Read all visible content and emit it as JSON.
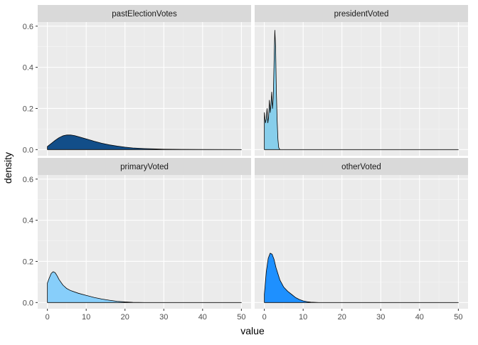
{
  "chart_data": {
    "type": "area",
    "chart_kind": "faceted density plot",
    "xlabel": "value",
    "ylabel": "density",
    "xlim": [
      -2.5,
      52.5
    ],
    "ylim": [
      -0.03,
      0.62
    ],
    "x_ticks": [
      0,
      10,
      20,
      30,
      40,
      50
    ],
    "x_tick_labels": [
      "0",
      "10",
      "20",
      "30",
      "40",
      "50"
    ],
    "y_ticks": [
      0.0,
      0.2,
      0.4,
      0.6
    ],
    "y_tick_labels": [
      "0.0",
      "0.2",
      "0.4",
      "0.6"
    ],
    "grid": true,
    "legend": "none",
    "facets": [
      {
        "label": "pastElectionVotes",
        "fill": "#124E89",
        "points": [
          [
            0,
            0.015
          ],
          [
            1,
            0.03
          ],
          [
            2,
            0.045
          ],
          [
            3,
            0.058
          ],
          [
            4,
            0.067
          ],
          [
            5,
            0.071
          ],
          [
            6,
            0.071
          ],
          [
            7,
            0.068
          ],
          [
            8,
            0.063
          ],
          [
            10,
            0.052
          ],
          [
            12,
            0.041
          ],
          [
            14,
            0.031
          ],
          [
            16,
            0.023
          ],
          [
            18,
            0.017
          ],
          [
            20,
            0.012
          ],
          [
            22,
            0.008
          ],
          [
            25,
            0.005
          ],
          [
            28,
            0.003
          ],
          [
            30,
            0.002
          ],
          [
            35,
            0.001
          ],
          [
            40,
            0.0005
          ],
          [
            50,
            0
          ]
        ]
      },
      {
        "label": "presidentVoted",
        "fill": "#87CEEB",
        "points": [
          [
            0,
            0.18
          ],
          [
            0.3,
            0.13
          ],
          [
            0.5,
            0.15
          ],
          [
            0.7,
            0.2
          ],
          [
            0.9,
            0.13
          ],
          [
            1.1,
            0.16
          ],
          [
            1.3,
            0.24
          ],
          [
            1.5,
            0.18
          ],
          [
            1.7,
            0.22
          ],
          [
            1.9,
            0.28
          ],
          [
            2.1,
            0.2
          ],
          [
            2.3,
            0.25
          ],
          [
            2.5,
            0.42
          ],
          [
            2.7,
            0.58
          ],
          [
            2.9,
            0.5
          ],
          [
            3.1,
            0.28
          ],
          [
            3.3,
            0.14
          ],
          [
            3.5,
            0.05
          ],
          [
            3.7,
            0.01
          ],
          [
            4,
            0
          ],
          [
            50,
            0
          ]
        ]
      },
      {
        "label": "primaryVoted",
        "fill": "#87CEFA",
        "points": [
          [
            0,
            0.095
          ],
          [
            0.5,
            0.12
          ],
          [
            1,
            0.142
          ],
          [
            1.5,
            0.15
          ],
          [
            2,
            0.145
          ],
          [
            2.5,
            0.13
          ],
          [
            3,
            0.112
          ],
          [
            4,
            0.085
          ],
          [
            5,
            0.068
          ],
          [
            6,
            0.058
          ],
          [
            8,
            0.045
          ],
          [
            10,
            0.035
          ],
          [
            12,
            0.025
          ],
          [
            14,
            0.017
          ],
          [
            16,
            0.011
          ],
          [
            18,
            0.006
          ],
          [
            20,
            0.003
          ],
          [
            22,
            0.001
          ],
          [
            25,
            0
          ],
          [
            50,
            0
          ]
        ]
      },
      {
        "label": "otherVoted",
        "fill": "#1E90FF",
        "points": [
          [
            0,
            0.04
          ],
          [
            0.5,
            0.15
          ],
          [
            1,
            0.215
          ],
          [
            1.5,
            0.24
          ],
          [
            2,
            0.235
          ],
          [
            2.5,
            0.21
          ],
          [
            3,
            0.17
          ],
          [
            4,
            0.11
          ],
          [
            5,
            0.075
          ],
          [
            6,
            0.055
          ],
          [
            7,
            0.04
          ],
          [
            8,
            0.025
          ],
          [
            9,
            0.015
          ],
          [
            10,
            0.008
          ],
          [
            11,
            0.004
          ],
          [
            12,
            0.002
          ],
          [
            14,
            0
          ],
          [
            50,
            0
          ]
        ]
      }
    ]
  }
}
